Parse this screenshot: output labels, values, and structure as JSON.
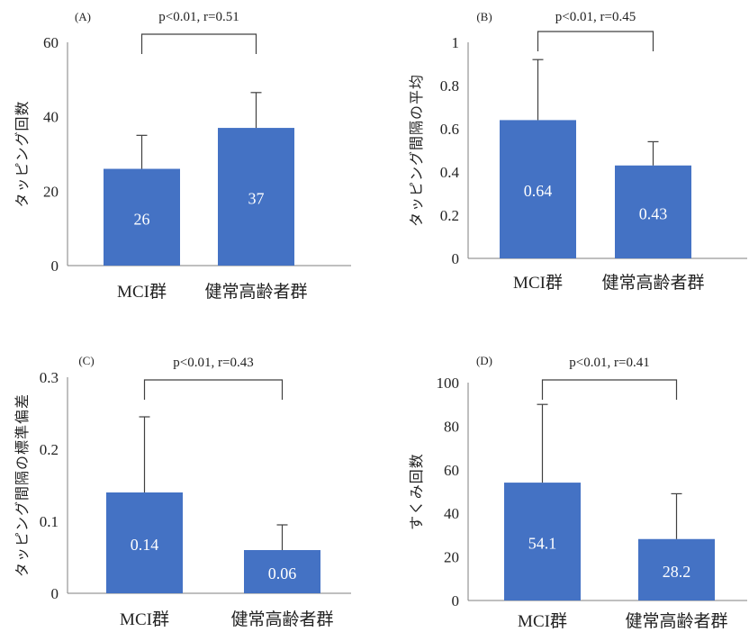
{
  "colors": {
    "bar": "#4472C4",
    "axis": "#7f7f7f",
    "text": "#222222",
    "bar_label": "#ffffff",
    "errorbar": "#404040",
    "bracket": "#404040"
  },
  "chart_data": [
    {
      "type": "bar",
      "panel": "(A)",
      "annotation": "p<0.01, r=0.51",
      "ylabel": "タッピング回数",
      "xlabel": "",
      "categories": [
        "MCI群",
        "健常高齢者群"
      ],
      "values": [
        26,
        37
      ],
      "error_upper": [
        35,
        46.5
      ],
      "value_labels": [
        "26",
        "37"
      ],
      "ylim": [
        0,
        60
      ],
      "yticks": [
        0,
        20,
        40,
        60
      ],
      "ytick_labels": [
        "0",
        "20",
        "40",
        "60"
      ],
      "grid": false,
      "legend": "none"
    },
    {
      "type": "bar",
      "panel": "(B)",
      "annotation": "p<0.01, r=0.45",
      "ylabel": "タッピング間隔の平均",
      "xlabel": "",
      "categories": [
        "MCI群",
        "健常高齢者群"
      ],
      "values": [
        0.64,
        0.43
      ],
      "error_upper": [
        0.92,
        0.54
      ],
      "value_labels": [
        "0.64",
        "0.43"
      ],
      "ylim": [
        0,
        1
      ],
      "yticks": [
        0,
        0.2,
        0.4,
        0.6,
        0.8,
        1
      ],
      "ytick_labels": [
        "0",
        "0.2",
        "0.4",
        "0.6",
        "0.8",
        "1"
      ],
      "grid": false,
      "legend": "none"
    },
    {
      "type": "bar",
      "panel": "(C)",
      "annotation": "p<0.01, r=0.43",
      "ylabel": "タッピング間隔の標準偏差",
      "xlabel": "",
      "categories": [
        "MCI群",
        "健常高齢者群"
      ],
      "values": [
        0.14,
        0.06
      ],
      "error_upper": [
        0.245,
        0.095
      ],
      "value_labels": [
        "0.14",
        "0.06"
      ],
      "ylim": [
        0,
        0.3
      ],
      "yticks": [
        0,
        0.1,
        0.2,
        0.3
      ],
      "ytick_labels": [
        "0",
        "0.1",
        "0.2",
        "0.3"
      ],
      "grid": false,
      "legend": "none"
    },
    {
      "type": "bar",
      "panel": "(D)",
      "annotation": "p<0.01, r=0.41",
      "ylabel": "すくみ回数",
      "xlabel": "",
      "categories": [
        "MCI群",
        "健常高齢者群"
      ],
      "values": [
        54.1,
        28.2
      ],
      "error_upper": [
        90,
        49
      ],
      "value_labels": [
        "54.1",
        "28.2"
      ],
      "ylim": [
        0,
        100
      ],
      "yticks": [
        0,
        20,
        40,
        60,
        80,
        100
      ],
      "ytick_labels": [
        "0",
        "20",
        "40",
        "60",
        "80",
        "100"
      ],
      "grid": false,
      "legend": "none"
    }
  ]
}
